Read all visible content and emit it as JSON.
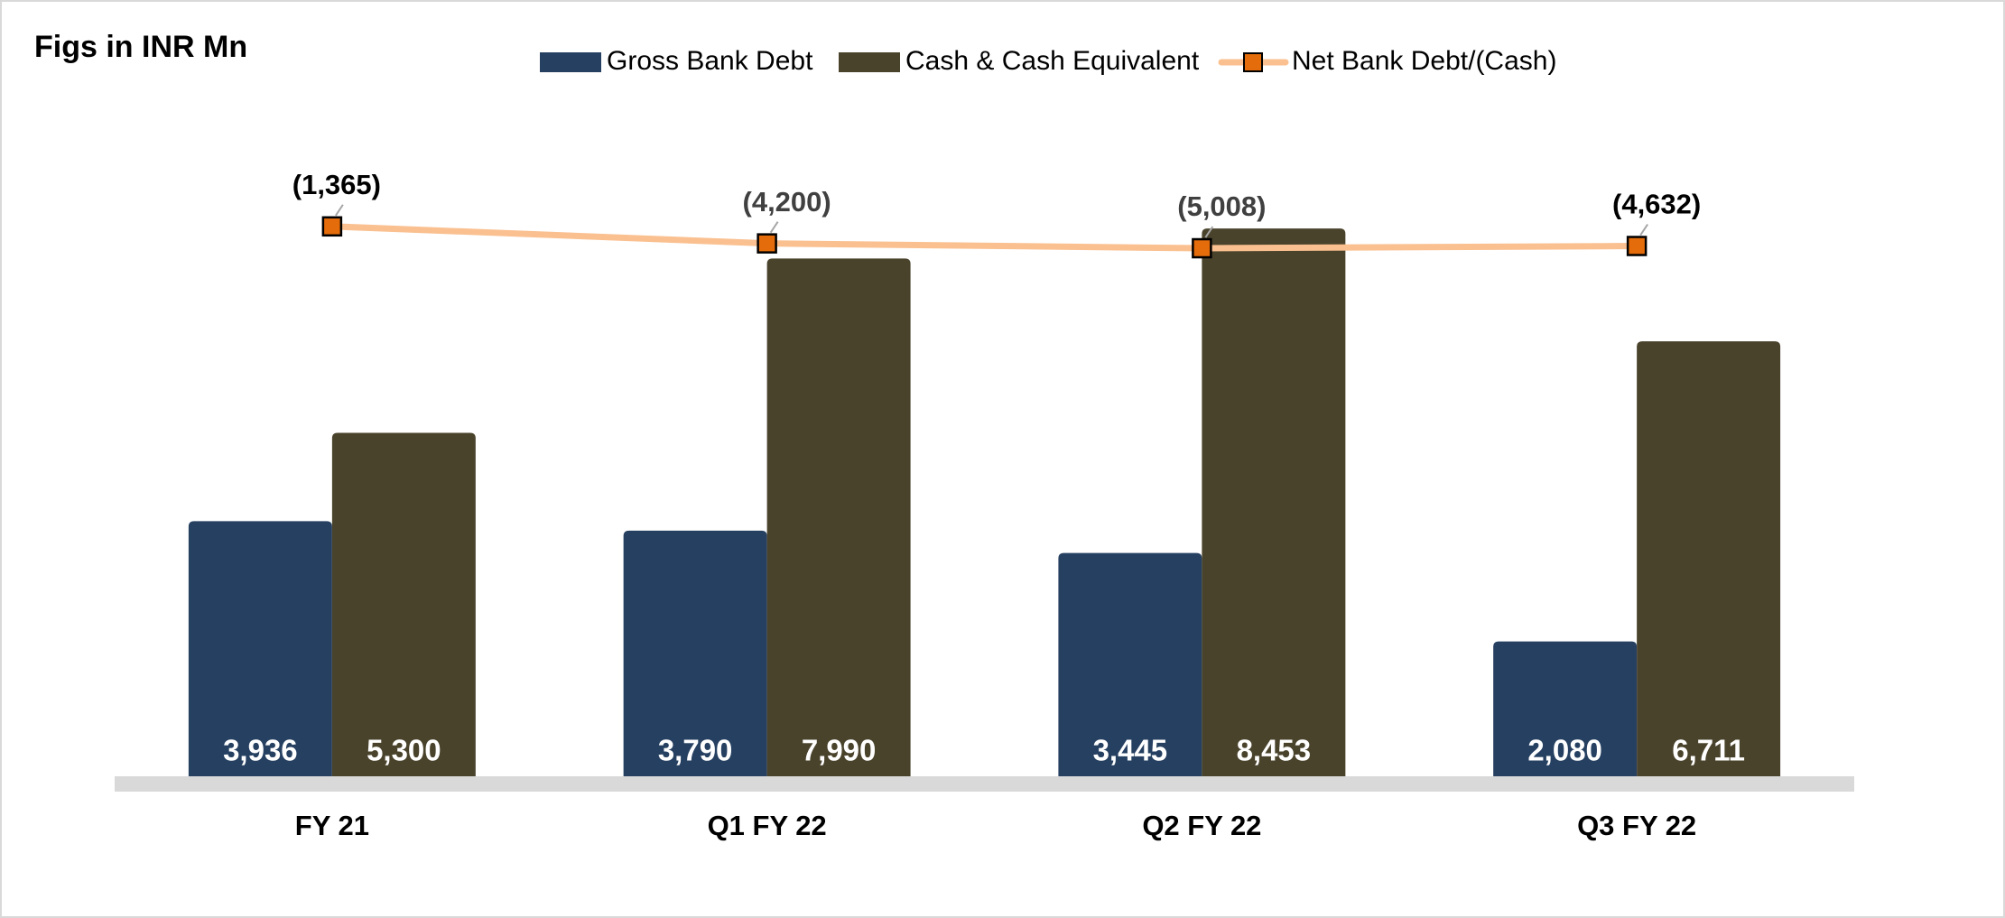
{
  "chart_data": {
    "type": "bar_line",
    "title": "Figs in INR Mn",
    "categories": [
      "FY 21",
      "Q1 FY 22",
      "Q2 FY 22",
      "Q3 FY 22"
    ],
    "series": [
      {
        "name": "Gross Bank Debt",
        "type": "bar",
        "color": "#264061",
        "values": [
          3936,
          3790,
          3445,
          2080
        ],
        "value_labels": [
          "3,936",
          "3,790",
          "3,445",
          "2,080"
        ]
      },
      {
        "name": "Cash & Cash Equivalent",
        "type": "bar",
        "color": "#4a432c",
        "values": [
          5300,
          7990,
          8453,
          6711
        ],
        "value_labels": [
          "5,300",
          "7,990",
          "8,453",
          "6,711"
        ]
      },
      {
        "name": "Net Bank Debt/(Cash)",
        "type": "line",
        "axis": "y2",
        "color": "#fac090",
        "marker_color": "#e46c0a",
        "values": [
          -1365,
          -4200,
          -5008,
          -4632
        ],
        "value_labels": [
          "(1,365)",
          "(4,200)",
          "(5,008)",
          "(4,632)"
        ]
      }
    ],
    "ylim": [
      0,
      10000
    ],
    "y2lim": [
      -93000,
      15000
    ],
    "legend": "top"
  }
}
